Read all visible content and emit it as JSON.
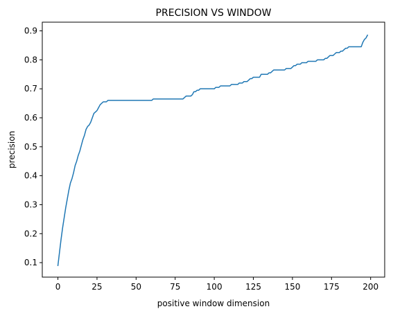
{
  "chart_data": {
    "type": "line",
    "title": "PRECISION VS WINDOW",
    "xlabel": "positive window dimension",
    "ylabel": "precision",
    "xlim": [
      -10,
      209
    ],
    "ylim": [
      0.05,
      0.93
    ],
    "xticks": [
      0,
      25,
      50,
      75,
      100,
      125,
      150,
      175,
      200
    ],
    "yticks": [
      0.1,
      0.2,
      0.3,
      0.4,
      0.5,
      0.6,
      0.7,
      0.8,
      0.9
    ],
    "xtick_labels": [
      "0",
      "25",
      "50",
      "75",
      "100",
      "125",
      "150",
      "175",
      "200"
    ],
    "ytick_labels": [
      "0.1",
      "0.2",
      "0.3",
      "0.4",
      "0.5",
      "0.6",
      "0.7",
      "0.8",
      "0.9"
    ],
    "grid": false,
    "legend": "none",
    "series": [
      {
        "color": "#1f77b4",
        "points": [
          [
            0,
            0.09
          ],
          [
            1,
            0.135
          ],
          [
            2,
            0.18
          ],
          [
            3,
            0.22
          ],
          [
            4,
            0.255
          ],
          [
            5,
            0.29
          ],
          [
            6,
            0.32
          ],
          [
            7,
            0.35
          ],
          [
            8,
            0.375
          ],
          [
            9,
            0.39
          ],
          [
            10,
            0.41
          ],
          [
            11,
            0.435
          ],
          [
            12,
            0.45
          ],
          [
            13,
            0.47
          ],
          [
            14,
            0.485
          ],
          [
            15,
            0.505
          ],
          [
            16,
            0.525
          ],
          [
            17,
            0.54
          ],
          [
            18,
            0.56
          ],
          [
            19,
            0.57
          ],
          [
            20,
            0.575
          ],
          [
            21,
            0.585
          ],
          [
            22,
            0.6
          ],
          [
            23,
            0.615
          ],
          [
            24,
            0.62
          ],
          [
            25,
            0.625
          ],
          [
            26,
            0.635
          ],
          [
            27,
            0.645
          ],
          [
            28,
            0.65
          ],
          [
            29,
            0.655
          ],
          [
            30,
            0.655
          ],
          [
            31,
            0.655
          ],
          [
            32,
            0.66
          ],
          [
            35,
            0.66
          ],
          [
            40,
            0.66
          ],
          [
            45,
            0.66
          ],
          [
            50,
            0.66
          ],
          [
            55,
            0.66
          ],
          [
            60,
            0.66
          ],
          [
            61,
            0.665
          ],
          [
            65,
            0.665
          ],
          [
            70,
            0.665
          ],
          [
            75,
            0.665
          ],
          [
            80,
            0.665
          ],
          [
            81,
            0.67
          ],
          [
            82,
            0.675
          ],
          [
            85,
            0.675
          ],
          [
            86,
            0.68
          ],
          [
            87,
            0.69
          ],
          [
            88,
            0.69
          ],
          [
            89,
            0.695
          ],
          [
            90,
            0.695
          ],
          [
            91,
            0.7
          ],
          [
            95,
            0.7
          ],
          [
            100,
            0.7
          ],
          [
            101,
            0.705
          ],
          [
            103,
            0.705
          ],
          [
            104,
            0.71
          ],
          [
            110,
            0.71
          ],
          [
            111,
            0.715
          ],
          [
            115,
            0.715
          ],
          [
            116,
            0.72
          ],
          [
            118,
            0.72
          ],
          [
            119,
            0.725
          ],
          [
            121,
            0.725
          ],
          [
            122,
            0.73
          ],
          [
            123,
            0.735
          ],
          [
            124,
            0.735
          ],
          [
            125,
            0.74
          ],
          [
            129,
            0.74
          ],
          [
            130,
            0.75
          ],
          [
            134,
            0.75
          ],
          [
            135,
            0.755
          ],
          [
            136,
            0.755
          ],
          [
            137,
            0.76
          ],
          [
            138,
            0.765
          ],
          [
            145,
            0.765
          ],
          [
            146,
            0.77
          ],
          [
            149,
            0.77
          ],
          [
            150,
            0.775
          ],
          [
            151,
            0.78
          ],
          [
            152,
            0.78
          ],
          [
            153,
            0.785
          ],
          [
            155,
            0.785
          ],
          [
            156,
            0.79
          ],
          [
            159,
            0.79
          ],
          [
            160,
            0.795
          ],
          [
            165,
            0.795
          ],
          [
            166,
            0.8
          ],
          [
            170,
            0.8
          ],
          [
            171,
            0.805
          ],
          [
            172,
            0.805
          ],
          [
            173,
            0.81
          ],
          [
            174,
            0.815
          ],
          [
            176,
            0.815
          ],
          [
            177,
            0.82
          ],
          [
            178,
            0.825
          ],
          [
            180,
            0.825
          ],
          [
            181,
            0.83
          ],
          [
            182,
            0.83
          ],
          [
            183,
            0.835
          ],
          [
            184,
            0.84
          ],
          [
            185,
            0.84
          ],
          [
            186,
            0.845
          ],
          [
            194,
            0.845
          ],
          [
            195,
            0.86
          ],
          [
            196,
            0.87
          ],
          [
            197,
            0.875
          ],
          [
            198,
            0.885
          ]
        ]
      }
    ]
  }
}
